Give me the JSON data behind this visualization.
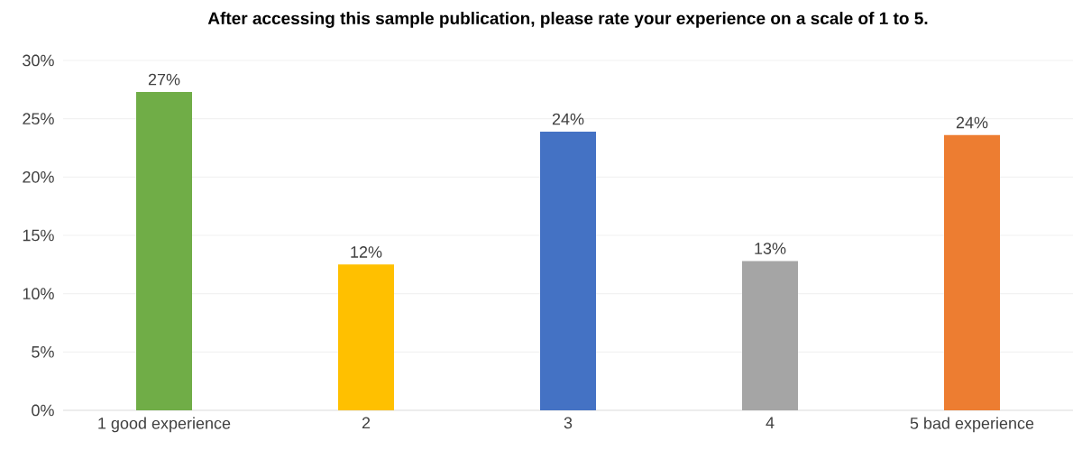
{
  "chart_data": {
    "type": "bar",
    "title": "After accessing this sample publication, please rate your experience on a scale of 1 to 5.",
    "categories": [
      "1 good experience",
      "2",
      "3",
      "4",
      "5 bad experience"
    ],
    "values": [
      27.3,
      12.5,
      23.9,
      12.8,
      23.6
    ],
    "value_labels": [
      "27%",
      "12%",
      "24%",
      "13%",
      "24%"
    ],
    "colors": [
      "#70ad47",
      "#ffc000",
      "#4472c4",
      "#a5a5a5",
      "#ed7d31"
    ],
    "ylim": [
      0,
      30
    ],
    "yticks": [
      {
        "value": 0,
        "label": "0%"
      },
      {
        "value": 5,
        "label": "5%"
      },
      {
        "value": 10,
        "label": "10%"
      },
      {
        "value": 15,
        "label": "15%"
      },
      {
        "value": 20,
        "label": "20%"
      },
      {
        "value": 25,
        "label": "25%"
      },
      {
        "value": 30,
        "label": "30%"
      }
    ],
    "grid": "y"
  }
}
